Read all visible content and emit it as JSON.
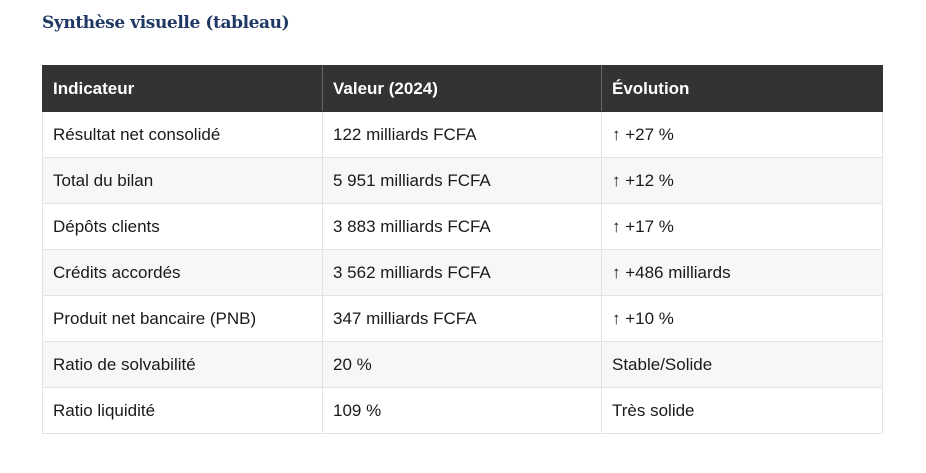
{
  "title": "Synthèse visuelle (tableau)",
  "table": {
    "headers": [
      "Indicateur",
      "Valeur (2024)",
      "Évolution"
    ],
    "rows": [
      [
        "Résultat net consolidé",
        "122 milliards FCFA",
        "↑ +27 %"
      ],
      [
        "Total du bilan",
        "5 951 milliards FCFA",
        "↑ +12 %"
      ],
      [
        "Dépôts clients",
        "3 883 milliards FCFA",
        "↑ +17 %"
      ],
      [
        "Crédits accordés",
        "3 562 milliards FCFA",
        "↑ +486 milliards"
      ],
      [
        "Produit net bancaire (PNB)",
        "347 milliards FCFA",
        "↑ +10 %"
      ],
      [
        "Ratio de solvabilité",
        "20 %",
        "Stable/Solide"
      ],
      [
        "Ratio liquidité",
        "109 %",
        "Très solide"
      ]
    ]
  },
  "colors": {
    "title": "#1f3864",
    "header_background": "#333333",
    "header_text": "#ffffff",
    "row_alt_background": "#f7f7f7",
    "border": "#e3e3e3"
  }
}
